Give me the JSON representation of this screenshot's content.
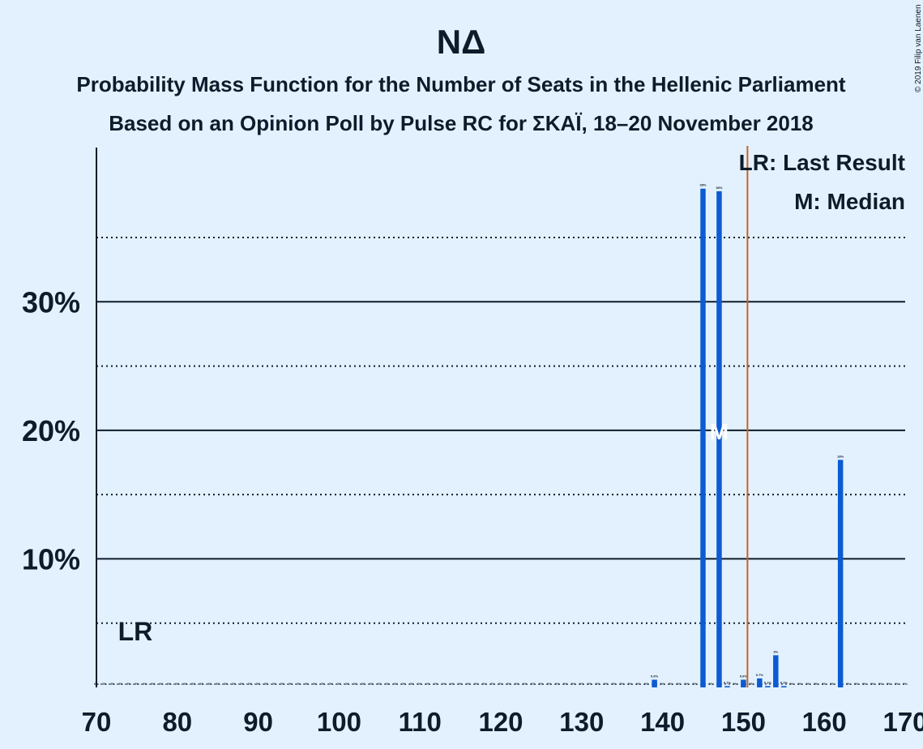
{
  "chart_data": {
    "type": "bar",
    "title": "ΝΔ",
    "subtitle_lines": [
      "Probability Mass Function for the Number of Seats in the Hellenic Parliament",
      "Based on an Opinion Poll by Pulse RC for ΣΚΑΪ, 18–20 November 2018"
    ],
    "copyright": "© 2019 Filip van Laenen",
    "xlim": [
      70,
      170
    ],
    "ylim": [
      0,
      42
    ],
    "x_ticks": [
      70,
      80,
      90,
      100,
      110,
      120,
      130,
      140,
      150,
      160,
      170
    ],
    "y_ticks": [
      {
        "value": 10,
        "label": "10%"
      },
      {
        "value": 20,
        "label": "20%"
      },
      {
        "value": 30,
        "label": "30%"
      }
    ],
    "y_dotted": [
      5,
      15,
      25,
      35
    ],
    "legend": [
      "LR: Last Result",
      "M: Median"
    ],
    "last_result": {
      "seat": 75,
      "label": "LR"
    },
    "majority_line": 151,
    "median": {
      "seat": 147,
      "marker": "M"
    },
    "colors": {
      "bar": "#0b5bd3",
      "majority": "#c8641e",
      "background": "#e3f1ff",
      "text": "#0d1b2a"
    },
    "bars": [
      {
        "seat": 70,
        "value": 0,
        "label": "0%"
      },
      {
        "seat": 71,
        "value": 0,
        "label": "0%"
      },
      {
        "seat": 72,
        "value": 0,
        "label": "0%"
      },
      {
        "seat": 73,
        "value": 0,
        "label": "0%"
      },
      {
        "seat": 74,
        "value": 0,
        "label": "0%"
      },
      {
        "seat": 75,
        "value": 0,
        "label": "0%"
      },
      {
        "seat": 76,
        "value": 0,
        "label": "0%"
      },
      {
        "seat": 77,
        "value": 0,
        "label": "0%"
      },
      {
        "seat": 78,
        "value": 0,
        "label": "0%"
      },
      {
        "seat": 79,
        "value": 0,
        "label": "0%"
      },
      {
        "seat": 80,
        "value": 0,
        "label": "0%"
      },
      {
        "seat": 81,
        "value": 0,
        "label": "0%"
      },
      {
        "seat": 82,
        "value": 0,
        "label": "0%"
      },
      {
        "seat": 83,
        "value": 0,
        "label": "0%"
      },
      {
        "seat": 84,
        "value": 0,
        "label": "0%"
      },
      {
        "seat": 85,
        "value": 0,
        "label": "0%"
      },
      {
        "seat": 86,
        "value": 0,
        "label": "0%"
      },
      {
        "seat": 87,
        "value": 0,
        "label": "0%"
      },
      {
        "seat": 88,
        "value": 0,
        "label": "0%"
      },
      {
        "seat": 89,
        "value": 0,
        "label": "0%"
      },
      {
        "seat": 90,
        "value": 0,
        "label": "0%"
      },
      {
        "seat": 91,
        "value": 0,
        "label": "0%"
      },
      {
        "seat": 92,
        "value": 0,
        "label": "0%"
      },
      {
        "seat": 93,
        "value": 0,
        "label": "0%"
      },
      {
        "seat": 94,
        "value": 0,
        "label": "0%"
      },
      {
        "seat": 95,
        "value": 0,
        "label": "0%"
      },
      {
        "seat": 96,
        "value": 0,
        "label": "0%"
      },
      {
        "seat": 97,
        "value": 0,
        "label": "0%"
      },
      {
        "seat": 98,
        "value": 0,
        "label": "0%"
      },
      {
        "seat": 99,
        "value": 0,
        "label": "0%"
      },
      {
        "seat": 100,
        "value": 0,
        "label": "0%"
      },
      {
        "seat": 101,
        "value": 0,
        "label": "0%"
      },
      {
        "seat": 102,
        "value": 0,
        "label": "0%"
      },
      {
        "seat": 103,
        "value": 0,
        "label": "0%"
      },
      {
        "seat": 104,
        "value": 0,
        "label": "0%"
      },
      {
        "seat": 105,
        "value": 0,
        "label": "0%"
      },
      {
        "seat": 106,
        "value": 0,
        "label": "0%"
      },
      {
        "seat": 107,
        "value": 0,
        "label": "0%"
      },
      {
        "seat": 108,
        "value": 0,
        "label": "0%"
      },
      {
        "seat": 109,
        "value": 0,
        "label": "0%"
      },
      {
        "seat": 110,
        "value": 0,
        "label": "0%"
      },
      {
        "seat": 111,
        "value": 0,
        "label": "0%"
      },
      {
        "seat": 112,
        "value": 0,
        "label": "0%"
      },
      {
        "seat": 113,
        "value": 0,
        "label": "0%"
      },
      {
        "seat": 114,
        "value": 0,
        "label": "0%"
      },
      {
        "seat": 115,
        "value": 0,
        "label": "0%"
      },
      {
        "seat": 116,
        "value": 0,
        "label": "0%"
      },
      {
        "seat": 117,
        "value": 0,
        "label": "0%"
      },
      {
        "seat": 118,
        "value": 0,
        "label": "0%"
      },
      {
        "seat": 119,
        "value": 0,
        "label": "0%"
      },
      {
        "seat": 120,
        "value": 0,
        "label": "0%"
      },
      {
        "seat": 121,
        "value": 0,
        "label": "0%"
      },
      {
        "seat": 122,
        "value": 0,
        "label": "0%"
      },
      {
        "seat": 123,
        "value": 0,
        "label": "0%"
      },
      {
        "seat": 124,
        "value": 0,
        "label": "0%"
      },
      {
        "seat": 125,
        "value": 0,
        "label": "0%"
      },
      {
        "seat": 126,
        "value": 0,
        "label": "0%"
      },
      {
        "seat": 127,
        "value": 0,
        "label": "0%"
      },
      {
        "seat": 128,
        "value": 0,
        "label": "0%"
      },
      {
        "seat": 129,
        "value": 0,
        "label": "0%"
      },
      {
        "seat": 130,
        "value": 0,
        "label": "0%"
      },
      {
        "seat": 131,
        "value": 0,
        "label": "0%"
      },
      {
        "seat": 132,
        "value": 0,
        "label": "0%"
      },
      {
        "seat": 133,
        "value": 0,
        "label": "0%"
      },
      {
        "seat": 134,
        "value": 0,
        "label": "0%"
      },
      {
        "seat": 135,
        "value": 0,
        "label": "0%"
      },
      {
        "seat": 136,
        "value": 0,
        "label": "0%"
      },
      {
        "seat": 137,
        "value": 0,
        "label": "0%"
      },
      {
        "seat": 138,
        "value": 0,
        "label": "0%"
      },
      {
        "seat": 139,
        "value": 0.6,
        "label": "0.6%"
      },
      {
        "seat": 140,
        "value": 0,
        "label": "0%"
      },
      {
        "seat": 141,
        "value": 0,
        "label": "0%"
      },
      {
        "seat": 142,
        "value": 0,
        "label": "0%"
      },
      {
        "seat": 143,
        "value": 0,
        "label": "0%"
      },
      {
        "seat": 144,
        "value": 0,
        "label": "0%"
      },
      {
        "seat": 145,
        "value": 38.8,
        "label": "39%"
      },
      {
        "seat": 146,
        "value": 0,
        "label": "0%"
      },
      {
        "seat": 147,
        "value": 38.6,
        "label": "39%"
      },
      {
        "seat": 148,
        "value": 0.1,
        "label": "0.1%"
      },
      {
        "seat": 149,
        "value": 0,
        "label": "0%"
      },
      {
        "seat": 150,
        "value": 0.6,
        "label": "0.6%"
      },
      {
        "seat": 151,
        "value": 0,
        "label": "0%"
      },
      {
        "seat": 152,
        "value": 0.7,
        "label": "0.7%"
      },
      {
        "seat": 153,
        "value": 0.1,
        "label": "0.1%"
      },
      {
        "seat": 154,
        "value": 2.5,
        "label": "3%"
      },
      {
        "seat": 155,
        "value": 0.1,
        "label": "0.1%"
      },
      {
        "seat": 156,
        "value": 0,
        "label": "0%"
      },
      {
        "seat": 157,
        "value": 0,
        "label": "0%"
      },
      {
        "seat": 158,
        "value": 0,
        "label": "0%"
      },
      {
        "seat": 159,
        "value": 0,
        "label": "0%"
      },
      {
        "seat": 160,
        "value": 0,
        "label": "0%"
      },
      {
        "seat": 161,
        "value": 0,
        "label": "0%"
      },
      {
        "seat": 162,
        "value": 17.7,
        "label": "18%"
      },
      {
        "seat": 163,
        "value": 0,
        "label": "0%"
      },
      {
        "seat": 164,
        "value": 0,
        "label": "0%"
      },
      {
        "seat": 165,
        "value": 0,
        "label": "0%"
      },
      {
        "seat": 166,
        "value": 0,
        "label": "0%"
      },
      {
        "seat": 167,
        "value": 0,
        "label": "0%"
      },
      {
        "seat": 168,
        "value": 0,
        "label": "0%"
      },
      {
        "seat": 169,
        "value": 0,
        "label": "0%"
      },
      {
        "seat": 170,
        "value": 0,
        "label": "0%"
      }
    ]
  }
}
